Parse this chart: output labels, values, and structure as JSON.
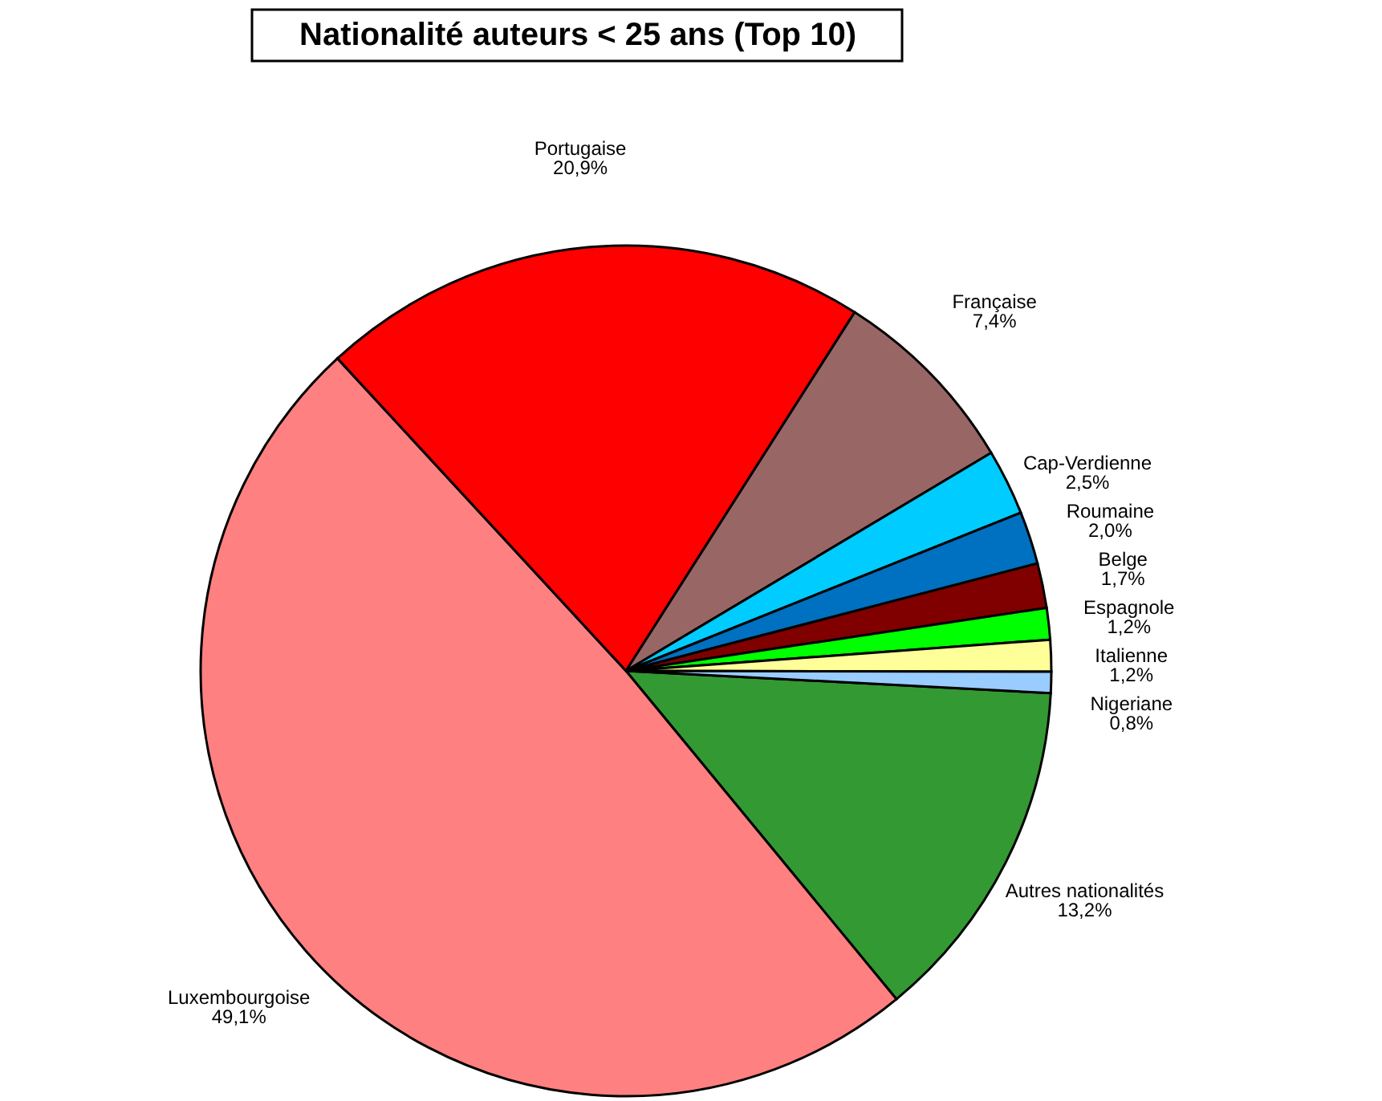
{
  "chart_data": {
    "type": "pie",
    "title": "Nationalité auteurs < 25 ans (Top 10)",
    "categories": [
      "Autres nationalités",
      "Luxembourgoise",
      "Portugaise",
      "Française",
      "Cap-Verdienne",
      "Roumaine",
      "Belge",
      "Espagnole",
      "Italienne",
      "Nigeriane"
    ],
    "values": [
      13.2,
      49.1,
      20.9,
      7.4,
      2.5,
      2.0,
      1.7,
      1.2,
      1.2,
      0.8
    ],
    "value_labels": [
      "13,2%",
      "49,1%",
      "20,9%",
      "7,4%",
      "2,5%",
      "2,0%",
      "1,7%",
      "1,2%",
      "1,2%",
      "0,8%"
    ],
    "colors": [
      "#339933",
      "#ff8080",
      "#ff0000",
      "#996666",
      "#00ccff",
      "#0070c0",
      "#800000",
      "#00ff00",
      "#ffff99",
      "#99ccff"
    ]
  }
}
